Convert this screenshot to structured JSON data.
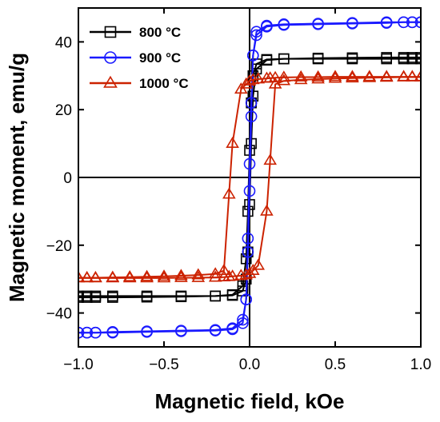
{
  "chart_data": {
    "type": "line",
    "title": "",
    "xlabel": "Magnetic field, kOe",
    "ylabel": "Magnetic moment, emu/g",
    "xlim": [
      -1.0,
      1.0
    ],
    "ylim": [
      -50,
      50
    ],
    "xticks": [
      -1.0,
      -0.5,
      0.0,
      0.5,
      1.0
    ],
    "xtick_labels": [
      "−1.0",
      "−0.5",
      "0.0",
      "0.5",
      "1.0"
    ],
    "yticks": [
      -40,
      -20,
      0,
      20,
      40
    ],
    "ytick_labels": [
      "−40",
      "−20",
      "0",
      "20",
      "40"
    ],
    "zero_lines": true,
    "grid": false,
    "legend_position": "top-left",
    "series": [
      {
        "name": "800 °C",
        "color": "#000000",
        "marker": "square",
        "x": [
          -1.0,
          -0.95,
          -0.9,
          -0.8,
          -0.6,
          -0.4,
          -0.2,
          -0.1,
          -0.04,
          -0.02,
          -0.01,
          0.0,
          0.01,
          0.02,
          0.04,
          0.1,
          0.2,
          0.4,
          0.6,
          0.8,
          0.9,
          0.95,
          1.0
        ],
        "down": [
          -35,
          -35,
          -35,
          -35,
          -35,
          -35,
          -35,
          -34.8,
          -33.5,
          -30,
          -22,
          -8,
          10,
          24,
          32,
          34.6,
          35,
          35.2,
          35.3,
          35.4,
          35.4,
          35.4,
          35.4
        ],
        "up": [
          -35.4,
          -35.4,
          -35.4,
          -35.4,
          -35.3,
          -35.2,
          -35,
          -34.6,
          -32,
          -24,
          -10,
          8,
          22,
          30,
          33.5,
          34.8,
          35,
          35,
          35,
          35,
          35,
          35,
          35
        ]
      },
      {
        "name": "900 °C",
        "color": "#1a1aff",
        "marker": "circle",
        "x": [
          -1.0,
          -0.95,
          -0.9,
          -0.8,
          -0.6,
          -0.4,
          -0.2,
          -0.1,
          -0.04,
          -0.02,
          -0.01,
          0.0,
          0.01,
          0.02,
          0.04,
          0.1,
          0.2,
          0.4,
          0.6,
          0.8,
          0.9,
          0.95,
          1.0
        ],
        "down": [
          -45.8,
          -45.8,
          -45.8,
          -45.6,
          -45.4,
          -45.2,
          -45,
          -44.5,
          -42,
          -36,
          -22,
          -4,
          18,
          36,
          43,
          44.8,
          45.2,
          45.4,
          45.6,
          45.8,
          45.8,
          45.8,
          45.8
        ],
        "up": [
          -45.8,
          -45.8,
          -45.8,
          -45.8,
          -45.6,
          -45.4,
          -45.2,
          -44.8,
          -43,
          -36,
          -18,
          4,
          22,
          36,
          42,
          44.5,
          45,
          45.2,
          45.4,
          45.6,
          45.8,
          45.8,
          45.8
        ]
      },
      {
        "name": "1000 °C",
        "color": "#cc2200",
        "marker": "triangle",
        "x": [
          -1.0,
          -0.95,
          -0.9,
          -0.8,
          -0.7,
          -0.6,
          -0.5,
          -0.4,
          -0.3,
          -0.2,
          -0.15,
          -0.12,
          -0.1,
          -0.05,
          -0.02,
          0.0,
          0.02,
          0.05,
          0.1,
          0.12,
          0.15,
          0.2,
          0.3,
          0.4,
          0.5,
          0.6,
          0.7,
          0.8,
          0.9,
          0.95,
          1.0
        ],
        "down": [
          -29.6,
          -29.6,
          -29.6,
          -29.5,
          -29.4,
          -29.3,
          -29.2,
          -29,
          -28.8,
          -28.5,
          -27.5,
          -5,
          10,
          26,
          27.5,
          28.4,
          28.8,
          29,
          29.2,
          29.3,
          29.4,
          29.5,
          29.6,
          29.6,
          29.7,
          29.7,
          29.7,
          29.7,
          29.7,
          29.7,
          29.7
        ],
        "up": [
          -29.7,
          -29.7,
          -29.7,
          -29.7,
          -29.7,
          -29.7,
          -29.7,
          -29.6,
          -29.6,
          -29.5,
          -29.4,
          -29.3,
          -29.2,
          -29,
          -28.8,
          -28.4,
          -27.5,
          -26,
          -10,
          5,
          27.5,
          28.5,
          28.8,
          29,
          29.2,
          29.3,
          29.4,
          29.5,
          29.6,
          29.6,
          29.6
        ]
      }
    ]
  }
}
